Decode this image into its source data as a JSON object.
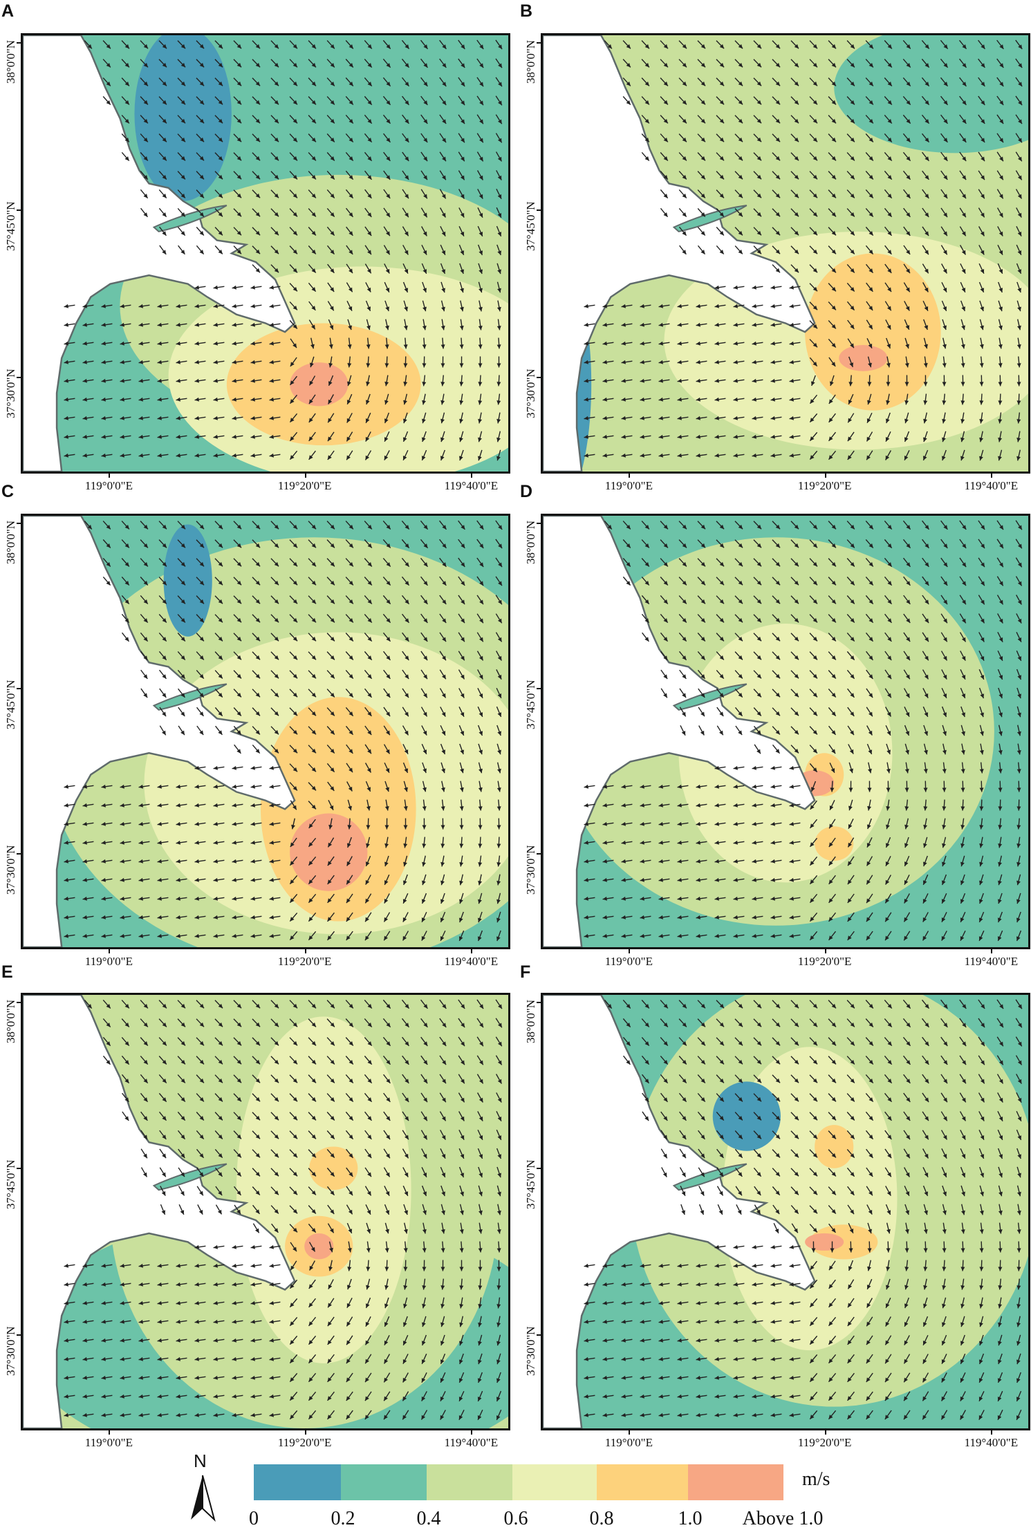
{
  "panels": [
    {
      "letter": "A"
    },
    {
      "letter": "B"
    },
    {
      "letter": "C"
    },
    {
      "letter": "D"
    },
    {
      "letter": "E"
    },
    {
      "letter": "F"
    }
  ],
  "axes": {
    "lat_labels": [
      "38°0'0\"N",
      "37°45'0\"N",
      "37°30'0\"N"
    ],
    "lon_labels": [
      "119°0'0\"E",
      "119°20'0\"E",
      "119°40'0\"E"
    ]
  },
  "legend": {
    "unit": "m/s",
    "tick_labels": [
      "0",
      "0.2",
      "0.4",
      "0.6",
      "0.8",
      "1.0",
      "Above 1.0"
    ],
    "colors": [
      "#4a9cb8",
      "#6cc3a8",
      "#c9e09c",
      "#eaf0b4",
      "#fdd27c",
      "#f7a784"
    ]
  },
  "north_arrow": {
    "label": "N"
  },
  "colors": {
    "land": "#ffffff",
    "coast": "#5f6b6b",
    "arrow": "#222222",
    "frame": "#111111"
  }
}
